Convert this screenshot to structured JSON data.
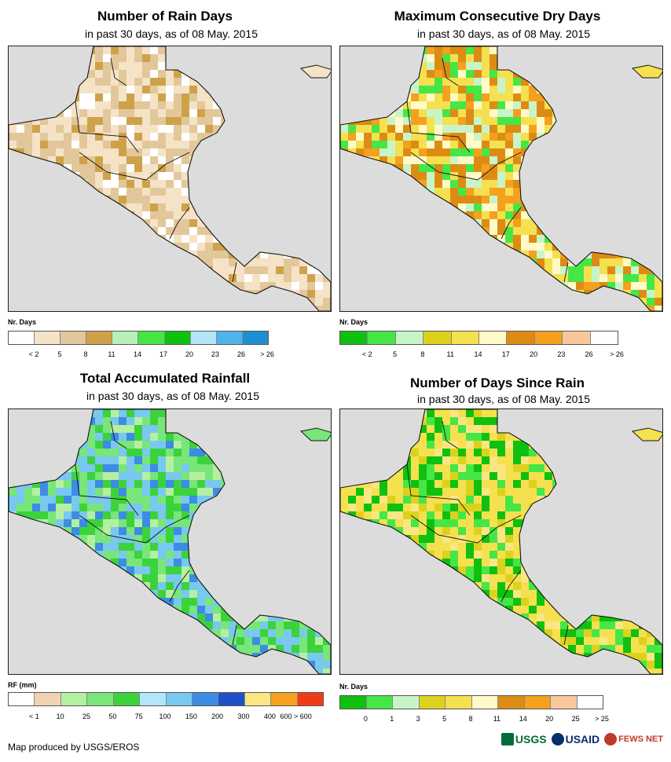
{
  "panels": [
    {
      "title": "Number of Rain Days",
      "subtitle": "in past 30 days, as of 08 May. 2015",
      "legend_title": "Nr. Days",
      "legend_colors": [
        "#ffffff",
        "#f5e3c8",
        "#e2c79a",
        "#cfa24a",
        "#b8f0b8",
        "#46e646",
        "#10c010",
        "#b4e6fa",
        "#50b4ea",
        "#1e90d2"
      ],
      "legend_ticks": [
        "< 2",
        "5",
        "8",
        "11",
        "14",
        "17",
        "20",
        "23",
        "26",
        "> 26"
      ],
      "land_colors": [
        "#f5e3c8",
        "#e2c79a",
        "#f5e3c8",
        "#ffffff",
        "#e2c79a",
        "#cfa24a",
        "#f5e3c8",
        "#e2c79a"
      ]
    },
    {
      "title": "Maximum Consecutive Dry Days",
      "subtitle": "in past 30 days, as of 08 May. 2015",
      "legend_title": "Nr. Days",
      "legend_colors": [
        "#10c010",
        "#46e646",
        "#c8f5c8",
        "#dcd21e",
        "#f5e050",
        "#fffac8",
        "#dc8c14",
        "#f5a01e",
        "#f8c89a",
        "#ffffff"
      ],
      "legend_ticks": [
        "< 2",
        "5",
        "8",
        "11",
        "14",
        "17",
        "20",
        "23",
        "26",
        "> 26"
      ],
      "land_colors": [
        "#f5e050",
        "#dc8c14",
        "#fffac8",
        "#f5a01e",
        "#c8f5c8",
        "#46e646",
        "#f5e050",
        "#dc8c14"
      ]
    },
    {
      "title": "Total Accumulated Rainfall",
      "subtitle": "in past 30 days, as of 08 May. 2015",
      "legend_title": "RF (mm)",
      "legend_colors": [
        "#ffffff",
        "#f0d2b4",
        "#b4f0a0",
        "#78e678",
        "#3cd23c",
        "#b4e6fa",
        "#78c8f0",
        "#3c8ce6",
        "#1e50c8",
        "#fae682",
        "#f5a01e",
        "#f03c14"
      ],
      "legend_ticks": [
        "< 1",
        "10",
        "25",
        "50",
        "75",
        "100",
        "150",
        "200",
        "300",
        "400",
        "600 > 600"
      ],
      "land_colors": [
        "#78e678",
        "#3cd23c",
        "#78c8f0",
        "#3c8ce6",
        "#b4f0a0",
        "#78e678",
        "#78c8f0",
        "#3cd23c"
      ]
    },
    {
      "title": "Number of Days Since Rain",
      "subtitle": "in past 30 days, as of 08 May. 2015",
      "legend_title": "Nr. Days",
      "legend_colors": [
        "#10c010",
        "#46e646",
        "#c8f5c8",
        "#dcd21e",
        "#f5e050",
        "#fffac8",
        "#dc8c14",
        "#f5a01e",
        "#f8c89a",
        "#ffffff"
      ],
      "legend_ticks": [
        "0",
        "1",
        "3",
        "5",
        "8",
        "11",
        "14",
        "20",
        "25",
        "> 25"
      ],
      "land_colors": [
        "#f5e050",
        "#fae682",
        "#10c010",
        "#f5e050",
        "#dcd21e",
        "#46e646",
        "#f5e050",
        "#10c010"
      ]
    }
  ],
  "footer": "Map produced by USGS/EROS",
  "logos": {
    "usgs": "USGS",
    "usaid": "USAID",
    "fews": "FEWS NET",
    "usgs_color": "#006c3a",
    "usaid_color": "#0a2d6e",
    "fews_color": "#c0392b"
  }
}
